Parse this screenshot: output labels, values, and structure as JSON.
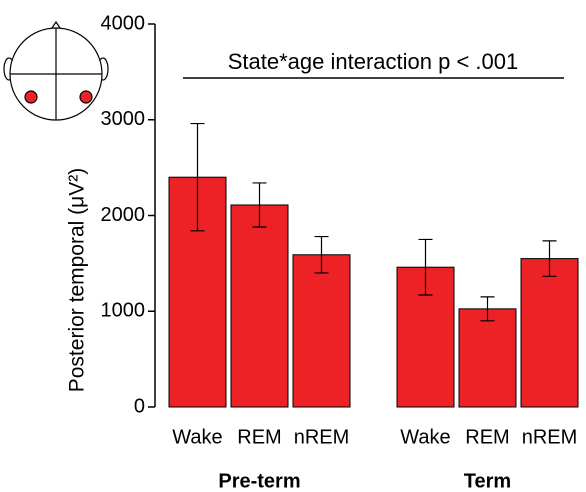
{
  "chart_data": {
    "type": "bar",
    "annotation": "State*age interaction p < .001",
    "y_label": "Posterior temporal (μV²)",
    "color": "#ec2227",
    "ylim": [
      0,
      4000
    ],
    "yticks": [
      0,
      1000,
      2000,
      3000,
      4000
    ],
    "groups": [
      {
        "name": "Pre-term",
        "categories": [
          "Wake",
          "REM",
          "nREM"
        ],
        "values": [
          2400,
          2110,
          1590
        ],
        "errors": [
          560,
          230,
          190
        ]
      },
      {
        "name": "Term",
        "categories": [
          "Wake",
          "REM",
          "nREM"
        ],
        "values": [
          1460,
          1025,
          1550
        ],
        "errors": [
          290,
          125,
          185
        ]
      }
    ]
  }
}
